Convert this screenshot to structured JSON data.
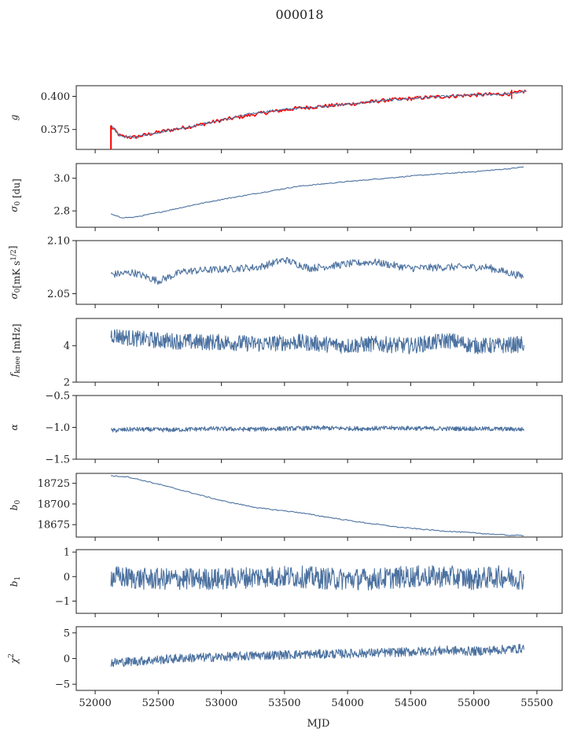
{
  "figure": {
    "title": "000018",
    "xlabel": "MJD",
    "xlim": [
      51850,
      55700
    ],
    "xticks": [
      52000,
      52500,
      53000,
      53500,
      54000,
      54500,
      55000,
      55500
    ],
    "colors": {
      "series": "#4c72a0",
      "overlay": "#ff0000",
      "frame": "#222222"
    }
  },
  "chart_data": [
    {
      "type": "line",
      "ylabel": "g",
      "ylim": [
        0.36,
        0.408
      ],
      "yticks": [
        "0.375",
        "0.400"
      ],
      "x": [
        52125,
        52200,
        52300,
        52500,
        52800,
        53000,
        53300,
        53600,
        54000,
        54300,
        54600,
        55000,
        55300,
        55420
      ],
      "series": [
        {
          "values": [
            0.377,
            0.37,
            0.369,
            0.373,
            0.378,
            0.382,
            0.387,
            0.391,
            0.394,
            0.397,
            0.399,
            0.401,
            0.402,
            0.404
          ]
        },
        {
          "values": [
            0.378,
            0.37,
            0.369,
            0.373,
            0.378,
            0.382,
            0.388,
            0.391,
            0.394,
            0.397,
            0.399,
            0.401,
            0.402,
            0.404
          ]
        }
      ]
    },
    {
      "type": "line",
      "ylabel": "σ0 [du]",
      "ylim": [
        2.7,
        3.09
      ],
      "yticks": [
        "2.8",
        "3.0"
      ],
      "x": [
        52125,
        52200,
        52300,
        52500,
        52800,
        53000,
        53300,
        53600,
        54000,
        54300,
        54600,
        55000,
        55300,
        55400
      ],
      "series": [
        {
          "values": [
            2.78,
            2.76,
            2.76,
            2.79,
            2.84,
            2.87,
            2.91,
            2.95,
            2.98,
            3.0,
            3.02,
            3.04,
            3.06,
            3.07
          ]
        }
      ]
    },
    {
      "type": "line",
      "ylabel": "σ0 [mK s^1/2]",
      "ylim": [
        2.04,
        2.1
      ],
      "yticks": [
        "2.05",
        "2.10"
      ],
      "x": [
        52125,
        52300,
        52500,
        52700,
        53000,
        53300,
        53500,
        53700,
        54000,
        54200,
        54500,
        54800,
        55100,
        55400
      ],
      "series": [
        {
          "values": [
            2.068,
            2.07,
            2.062,
            2.071,
            2.073,
            2.075,
            2.082,
            2.074,
            2.078,
            2.08,
            2.074,
            2.075,
            2.075,
            2.066
          ]
        }
      ]
    },
    {
      "type": "line",
      "ylabel": "f_knee [mHz]",
      "ylim": [
        2.0,
        5.5
      ],
      "yticks": [
        "2",
        "4"
      ],
      "x": [
        52125,
        52300,
        52500,
        52800,
        53000,
        53300,
        53600,
        54000,
        54200,
        54500,
        54800,
        55000,
        55200,
        55400
      ],
      "series": [
        {
          "values": [
            4.6,
            4.4,
            4.3,
            4.2,
            4.2,
            4.1,
            4.2,
            4.0,
            4.1,
            4.0,
            4.3,
            4.0,
            4.0,
            4.1
          ]
        }
      ]
    },
    {
      "type": "line",
      "ylabel": "α",
      "ylim": [
        -1.5,
        -0.5
      ],
      "yticks": [
        "−1.5",
        "−1.0",
        "−0.5"
      ],
      "x": [
        52125,
        52300,
        52600,
        52900,
        53200,
        53500,
        53800,
        54100,
        54400,
        54700,
        55000,
        55400
      ],
      "series": [
        {
          "values": [
            -1.05,
            -1.03,
            -1.04,
            -1.02,
            -1.03,
            -1.02,
            -1.01,
            -1.02,
            -1.01,
            -1.02,
            -1.02,
            -1.03
          ]
        }
      ]
    },
    {
      "type": "line",
      "ylabel": "b0",
      "ylim": [
        18660,
        18737
      ],
      "yticks": [
        "18675",
        "18700",
        "18725"
      ],
      "x": [
        52125,
        52250,
        52500,
        52800,
        53000,
        53300,
        53600,
        53800,
        54100,
        54400,
        54700,
        55000,
        55300,
        55400
      ],
      "series": [
        {
          "values": [
            18734,
            18733,
            18724,
            18712,
            18704,
            18695,
            18690,
            18685,
            18678,
            18672,
            18668,
            18665,
            18662,
            18662
          ]
        }
      ]
    },
    {
      "type": "line",
      "ylabel": "b1",
      "ylim": [
        -1.5,
        1.1
      ],
      "yticks": [
        "−1",
        "0",
        "1"
      ],
      "x": [
        52125,
        52400,
        52700,
        53000,
        53300,
        53600,
        53900,
        54200,
        54500,
        54800,
        55000,
        55200,
        55400
      ],
      "series": [
        {
          "values": [
            0.0,
            -0.1,
            -0.1,
            -0.1,
            0.0,
            0.0,
            -0.1,
            -0.1,
            0.0,
            0.0,
            -0.1,
            0.0,
            -0.1
          ]
        }
      ]
    },
    {
      "type": "line",
      "ylabel": "χ2",
      "ylim": [
        -6.2,
        6.2
      ],
      "yticks": [
        "−5",
        "0",
        "5"
      ],
      "x": [
        52125,
        52400,
        52700,
        53000,
        53300,
        53600,
        53900,
        54200,
        54500,
        54800,
        55000,
        55200,
        55400
      ],
      "series": [
        {
          "values": [
            -0.8,
            -0.4,
            0.1,
            0.3,
            0.6,
            0.8,
            0.9,
            1.1,
            1.3,
            1.6,
            1.4,
            1.7,
            2.0
          ]
        }
      ]
    }
  ]
}
